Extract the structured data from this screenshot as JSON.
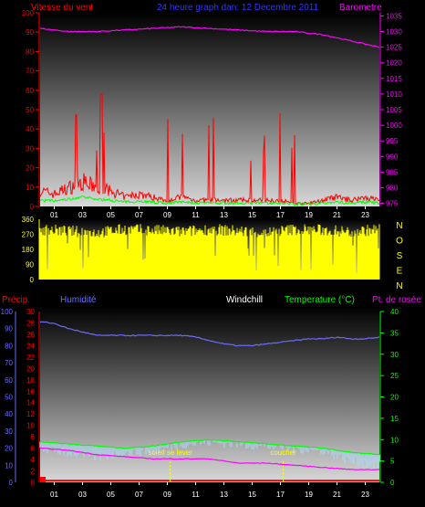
{
  "header": {
    "wind_label": "Vitesse du vent",
    "range_label": "24 heure graph dan: 12 Decembre 2011",
    "baro_label": "Barometre"
  },
  "colors": {
    "wind": "#ff0000",
    "gust_low": "#00ff00",
    "baro": "#ff00ff",
    "winddir": "#ffff00",
    "humidity": "#6a6aff",
    "temperature": "#00ff00",
    "dewpoint": "#ff00ff",
    "windchill": "#aaddff",
    "rain": "#ff0000",
    "axis_light": "#cccccc"
  },
  "chart_data": [
    {
      "type": "line",
      "title": "24 heure graph dan: 12 Decembre 2011",
      "left_axis_label": "Vitesse du vent",
      "right_axis_label": "Barometre",
      "x_ticks": [
        "01",
        "03",
        "05",
        "07",
        "09",
        "11",
        "13",
        "15",
        "17",
        "19",
        "21",
        "23"
      ],
      "left_ticks": [
        0,
        10,
        20,
        30,
        40,
        50,
        60,
        70,
        80,
        90,
        100
      ],
      "left_range": [
        0,
        100
      ],
      "right_ticks": [
        975,
        980,
        985,
        990,
        995,
        1000,
        1005,
        1010,
        1015,
        1020,
        1025,
        1030,
        1035
      ],
      "right_range": [
        974,
        1036
      ],
      "series": [
        {
          "name": "Barometre",
          "axis": "right",
          "x": [
            0,
            2,
            4,
            6,
            8,
            10,
            12,
            14,
            16,
            18,
            20,
            22,
            24
          ],
          "y": [
            1031,
            1030,
            1030,
            1030.5,
            1031,
            1031.5,
            1031,
            1030.5,
            1030,
            1030,
            1029,
            1027,
            1025
          ]
        },
        {
          "name": "Vitesse du vent",
          "axis": "left",
          "x": [
            0,
            1,
            2,
            3,
            4,
            5,
            6,
            7,
            8,
            9,
            10,
            11,
            12,
            13,
            14,
            15,
            16,
            17,
            18,
            19,
            20,
            21,
            22,
            23,
            24
          ],
          "y": [
            5,
            4,
            6,
            8,
            6,
            5,
            3,
            4,
            3,
            2,
            3,
            2,
            2,
            2,
            2,
            2,
            2,
            2,
            1,
            1,
            2,
            3,
            2,
            3,
            2
          ]
        }
      ]
    },
    {
      "type": "line",
      "title": "",
      "left_ticks": [
        0,
        90,
        180,
        270,
        360
      ],
      "left_range": [
        0,
        360
      ],
      "right_labels": [
        "N",
        "O",
        "S",
        "E",
        "N"
      ],
      "x_ticks": [],
      "series": [
        {
          "name": "",
          "x": [
            0,
            2,
            4,
            6,
            8,
            10,
            12,
            14,
            16,
            18,
            20,
            22,
            24
          ],
          "y": [
            300,
            290,
            280,
            300,
            295,
            285,
            300,
            290,
            280,
            300,
            295,
            285,
            300
          ]
        }
      ]
    },
    {
      "type": "line",
      "labels": [
        "Précip.",
        "Humidité",
        "Windchill",
        "Temperature (°C)",
        "Pt. de rosée"
      ],
      "x_ticks": [
        "01",
        "03",
        "05",
        "07",
        "09",
        "11",
        "13",
        "15",
        "17",
        "19",
        "21",
        "23"
      ],
      "precip_ticks": [
        0,
        2,
        4,
        6,
        8,
        10,
        12,
        14,
        16,
        18,
        20,
        22,
        24,
        26,
        28,
        30
      ],
      "humidity_ticks": [
        0,
        10,
        20,
        30,
        40,
        50,
        60,
        70,
        80,
        90,
        100
      ],
      "temp_ticks": [
        0,
        5,
        10,
        15,
        20,
        25,
        30,
        35,
        40
      ],
      "annotations": [
        {
          "text": "soleil se lever",
          "x": 9.2
        },
        {
          "text": "coucher",
          "x": 17.2
        }
      ],
      "series": [
        {
          "name": "Humidité",
          "axis": "humidity",
          "x": [
            0,
            1,
            2,
            3,
            4,
            5,
            6,
            7,
            8,
            9,
            10,
            11,
            12,
            13,
            14,
            15,
            16,
            17,
            18,
            19,
            20,
            21,
            22,
            23,
            24
          ],
          "y": [
            94,
            93,
            90,
            88,
            86,
            86,
            86,
            86,
            86,
            86,
            86,
            85,
            83,
            81,
            80,
            80,
            81,
            82,
            83,
            84,
            84,
            85,
            84,
            84,
            85
          ]
        },
        {
          "name": "Temperature (°C)",
          "axis": "temp",
          "x": [
            0,
            2,
            4,
            6,
            8,
            10,
            12,
            14,
            16,
            18,
            20,
            22,
            24
          ],
          "y": [
            9.5,
            9,
            8.5,
            8,
            8.5,
            9.5,
            10,
            9.5,
            9,
            8.5,
            8,
            7,
            6.5
          ]
        },
        {
          "name": "Pt. de rosée",
          "axis": "temp",
          "x": [
            0,
            2,
            4,
            6,
            8,
            10,
            12,
            14,
            16,
            18,
            20,
            22,
            24
          ],
          "y": [
            8,
            7.5,
            6.5,
            6,
            5.5,
            5.5,
            5.5,
            4.5,
            4.5,
            4,
            3.5,
            3,
            3
          ]
        },
        {
          "name": "Windchill",
          "axis": "temp",
          "x": [
            0,
            2,
            4,
            6,
            8,
            10,
            12,
            14,
            16,
            18,
            20,
            22,
            24
          ],
          "y": [
            8,
            7,
            6,
            7,
            7.5,
            9,
            9.5,
            9,
            8.5,
            8,
            7.5,
            5,
            4
          ]
        },
        {
          "name": "Précip.",
          "axis": "precip",
          "x": [
            0,
            24
          ],
          "y": [
            0.3,
            0.3
          ]
        }
      ]
    }
  ]
}
